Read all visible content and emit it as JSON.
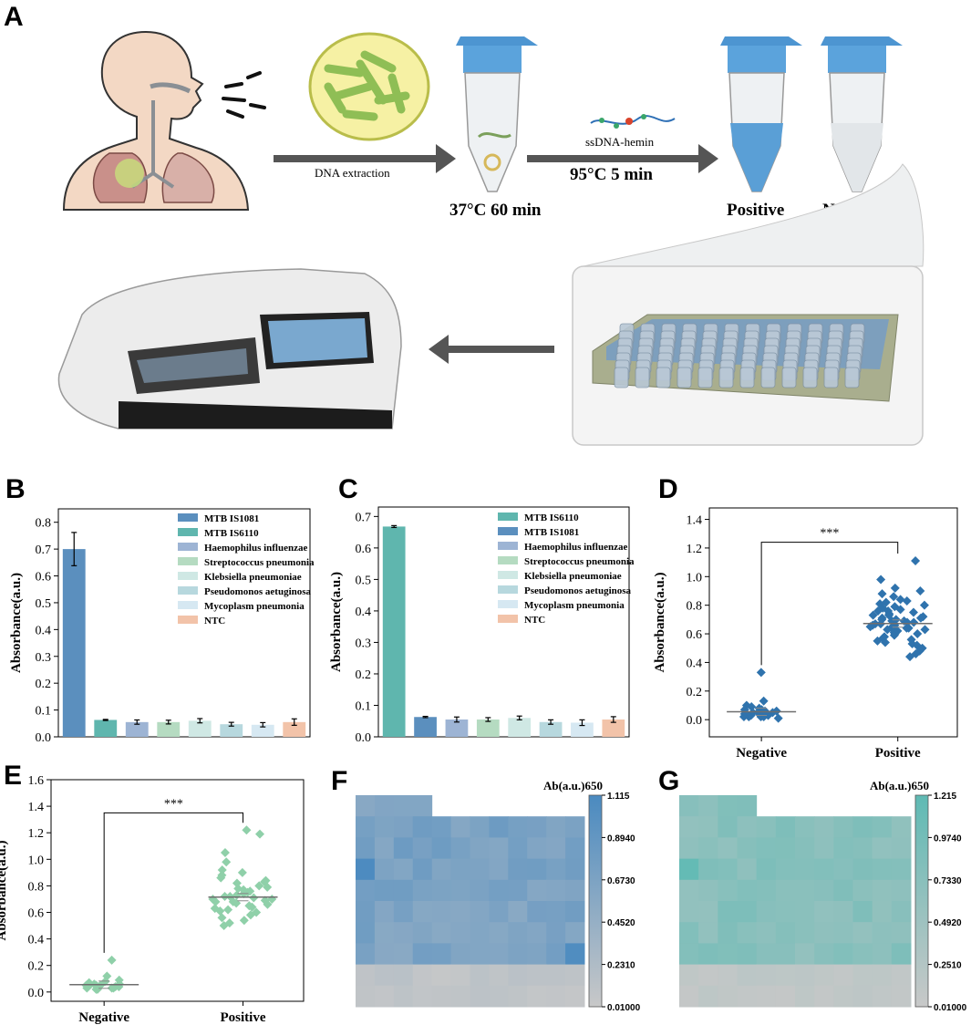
{
  "panels": {
    "A": "A",
    "B": "B",
    "C": "C",
    "D": "D",
    "E": "E",
    "F": "F",
    "G": "G"
  },
  "workflow": {
    "step1": "DNA extraction",
    "step2_temp": "37°C  60 min",
    "reagent": "ssDNA-hemin",
    "step3_temp": "95°C  5 min",
    "positive": "Positive",
    "negative": "Negative"
  },
  "colors": {
    "mtb1081": "#5b8fbe",
    "mtb6110": "#5fb6ae",
    "haemophilus": "#9db4d4",
    "strep": "#b5dbc1",
    "kleb": "#cfe8e4",
    "pseudo": "#b7d8de",
    "myco": "#d6e8f2",
    "ntc": "#f2c3a9",
    "scatterD": "#2f73ad",
    "scatterE": "#8fd0a9",
    "heatF": "#4a8ac0",
    "heatG": "#5fbab4",
    "heatLow": "#c8c8c8"
  },
  "chart_data": [
    {
      "id": "B",
      "type": "bar",
      "categories": [
        "MTB IS1081",
        "MTB IS6110",
        "Haemophilus influenzae",
        "Streptococcus pneumonia",
        "Klebsiella pneumoniae",
        "Pseudomonos aetuginosa",
        "Mycoplasm pneumonia",
        "NTC"
      ],
      "values": [
        0.7,
        0.063,
        0.055,
        0.055,
        0.06,
        0.047,
        0.045,
        0.055
      ],
      "errors": [
        0.062,
        0.002,
        0.008,
        0.007,
        0.008,
        0.007,
        0.008,
        0.012
      ],
      "colors": [
        "#5b8fbe",
        "#5fb6ae",
        "#9db4d4",
        "#b5dbc1",
        "#cfe8e4",
        "#b7d8de",
        "#d6e8f2",
        "#f2c3a9"
      ],
      "ylabel": "Absorbance(a.u.)",
      "ylim": [
        0,
        0.85
      ],
      "yticks": [
        "0.0",
        "0.1",
        "0.2",
        "0.3",
        "0.4",
        "0.5",
        "0.6",
        "0.7",
        "0.8"
      ],
      "legend": "top-right"
    },
    {
      "id": "C",
      "type": "bar",
      "categories": [
        "MTB IS6110",
        "MTB IS1081",
        "Haemophilus influenzae",
        "Streptococcus pneumonia",
        "Klebsiella pneumoniae",
        "Pseudomonos aetuginosa",
        "Mycoplasm pneumonia",
        "NTC"
      ],
      "values": [
        0.668,
        0.063,
        0.055,
        0.055,
        0.06,
        0.047,
        0.045,
        0.055
      ],
      "errors": [
        0.003,
        0.002,
        0.008,
        0.006,
        0.006,
        0.007,
        0.009,
        0.009
      ],
      "colors": [
        "#5fb6ae",
        "#5b8fbe",
        "#9db4d4",
        "#b5dbc1",
        "#cfe8e4",
        "#b7d8de",
        "#d6e8f2",
        "#f2c3a9"
      ],
      "ylabel": "Absorbance(a.u.)",
      "ylim": [
        0,
        0.73
      ],
      "yticks": [
        "0.0",
        "0.1",
        "0.2",
        "0.3",
        "0.4",
        "0.5",
        "0.6",
        "0.7"
      ],
      "legend": "top-right"
    },
    {
      "id": "D",
      "type": "scatter",
      "categories": [
        "Negative",
        "Positive"
      ],
      "ylabel": "Absorbance(a.u.)",
      "ylim": [
        -0.12,
        1.48
      ],
      "yticks": [
        "0.0",
        "0.2",
        "0.4",
        "0.6",
        "0.8",
        "1.0",
        "1.2",
        "1.4"
      ],
      "means": [
        0.055,
        0.672
      ],
      "significance": "***",
      "negative": [
        0.33,
        0.13,
        0.1,
        0.09,
        0.08,
        0.07,
        0.07,
        0.06,
        0.06,
        0.05,
        0.05,
        0.05,
        0.04,
        0.04,
        0.04,
        0.03,
        0.03,
        0.03,
        0.02,
        0.02,
        0.02,
        0.02,
        0.01
      ],
      "positive": [
        1.11,
        0.98,
        0.92,
        0.9,
        0.88,
        0.86,
        0.84,
        0.83,
        0.82,
        0.81,
        0.8,
        0.79,
        0.78,
        0.77,
        0.76,
        0.76,
        0.75,
        0.74,
        0.73,
        0.73,
        0.72,
        0.71,
        0.71,
        0.7,
        0.7,
        0.69,
        0.69,
        0.68,
        0.68,
        0.67,
        0.67,
        0.66,
        0.66,
        0.65,
        0.65,
        0.64,
        0.64,
        0.63,
        0.63,
        0.62,
        0.62,
        0.61,
        0.6,
        0.6,
        0.59,
        0.58,
        0.57,
        0.56,
        0.55,
        0.54,
        0.53,
        0.52,
        0.5,
        0.48,
        0.46,
        0.44
      ]
    },
    {
      "id": "E",
      "type": "scatter",
      "categories": [
        "Negative",
        "Positive"
      ],
      "ylabel": "Absorbance(a.u.)",
      "ylim": [
        -0.07,
        1.6
      ],
      "yticks": [
        "0.0",
        "0.2",
        "0.4",
        "0.6",
        "0.8",
        "1.0",
        "1.2",
        "1.4",
        "1.6"
      ],
      "means": [
        0.055,
        0.715
      ],
      "significance": "***",
      "negative": [
        0.24,
        0.12,
        0.09,
        0.08,
        0.07,
        0.06,
        0.06,
        0.05,
        0.05,
        0.05,
        0.04,
        0.04,
        0.04,
        0.03,
        0.03,
        0.03,
        0.02,
        0.02
      ],
      "positive": [
        1.22,
        1.19,
        1.05,
        0.98,
        0.92,
        0.9,
        0.88,
        0.86,
        0.84,
        0.83,
        0.82,
        0.8,
        0.79,
        0.78,
        0.77,
        0.76,
        0.75,
        0.74,
        0.73,
        0.72,
        0.72,
        0.71,
        0.7,
        0.7,
        0.69,
        0.68,
        0.68,
        0.67,
        0.66,
        0.65,
        0.64,
        0.63,
        0.62,
        0.61,
        0.6,
        0.58,
        0.56,
        0.54,
        0.52,
        0.5
      ]
    },
    {
      "id": "F",
      "type": "heatmap",
      "title": "Ab(a.u.)650",
      "colorbar_ticks": [
        "1.115",
        "0.8940",
        "0.6730",
        "0.4520",
        "0.2310",
        "0.01000"
      ],
      "range": [
        0.01,
        1.115
      ],
      "rows": 10,
      "cols": 12
    },
    {
      "id": "G",
      "type": "heatmap",
      "title": "Ab(a.u.)650",
      "colorbar_ticks": [
        "1.215",
        "0.9740",
        "0.7330",
        "0.4920",
        "0.2510",
        "0.01000"
      ],
      "range": [
        0.01,
        1.215
      ],
      "rows": 10,
      "cols": 12
    }
  ]
}
